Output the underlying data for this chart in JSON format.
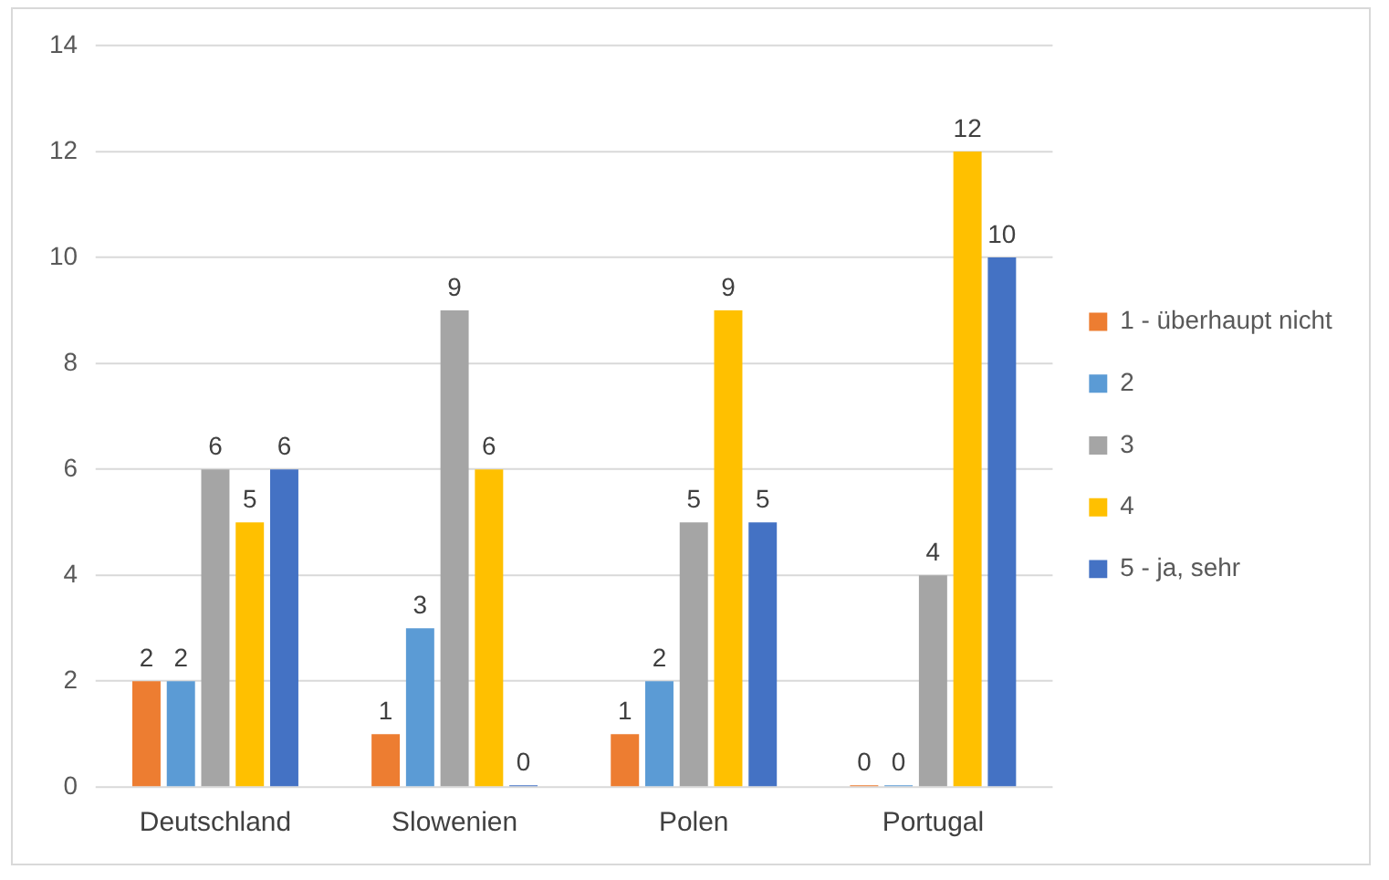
{
  "chart_data": {
    "type": "bar",
    "categories": [
      "Deutschland",
      "Slowenien",
      "Polen",
      "Portugal"
    ],
    "series": [
      {
        "name": "1 - überhaupt nicht",
        "color": "#ed7d31",
        "values": [
          2,
          1,
          1,
          0
        ]
      },
      {
        "name": "2",
        "color": "#5b9bd5",
        "values": [
          2,
          3,
          2,
          0
        ]
      },
      {
        "name": "3",
        "color": "#a5a5a5",
        "values": [
          6,
          9,
          5,
          4
        ]
      },
      {
        "name": "4",
        "color": "#ffc000",
        "values": [
          5,
          6,
          9,
          12
        ]
      },
      {
        "name": "5 - ja, sehr",
        "color": "#4472c4",
        "values": [
          6,
          0,
          5,
          10
        ]
      }
    ],
    "ylim": [
      0,
      14
    ],
    "yticks": [
      0,
      2,
      4,
      6,
      8,
      10,
      12,
      14
    ],
    "grid": "y",
    "legend": "right",
    "data_labels": true
  }
}
